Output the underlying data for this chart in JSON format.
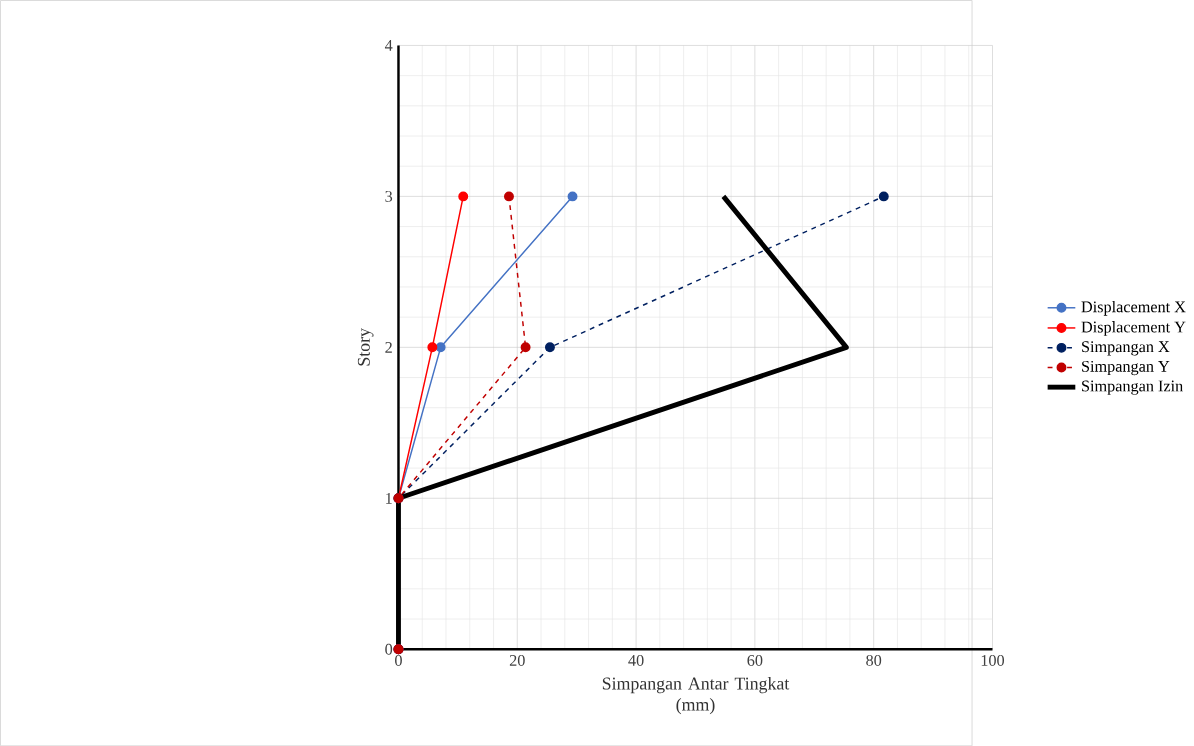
{
  "chart_data": {
    "type": "line",
    "xlabel": "Simpangan Antar Tingkat\n(mm)",
    "ylabel": "Story",
    "xlim": [
      0,
      100
    ],
    "xticks": [
      0,
      20,
      40,
      60,
      80,
      100
    ],
    "ylim": [
      0,
      4
    ],
    "yticks": [
      0,
      1,
      2,
      3,
      4
    ],
    "grid": true,
    "legend": "right",
    "marker": "circle",
    "series": [
      {
        "name": "Displacement X",
        "color": "#4472c4",
        "line_style": "solid",
        "x": [
          0,
          0,
          7.1,
          29.3
        ],
        "values": [
          0,
          1,
          2,
          3
        ]
      },
      {
        "name": "Displacement Y",
        "color": "#ff0000",
        "line_style": "solid",
        "x": [
          0,
          0,
          5.7,
          10.9
        ],
        "values": [
          0,
          1,
          2,
          3
        ]
      },
      {
        "name": "Simpangan X",
        "color": "#002060",
        "line_style": "dashed",
        "x": [
          0,
          0,
          25.5,
          81.7
        ],
        "values": [
          0,
          1,
          2,
          3
        ]
      },
      {
        "name": "Simpangan Y",
        "color": "#c00000",
        "line_style": "dashed",
        "x": [
          0,
          0,
          21.4,
          18.6
        ],
        "values": [
          0,
          1,
          2,
          3
        ]
      },
      {
        "name": "Simpangan Izin",
        "color": "#000000",
        "line_style": "solid",
        "marker": "none",
        "x": [
          0,
          0,
          75.4,
          54.7
        ],
        "values": [
          0,
          1,
          2,
          3
        ]
      }
    ]
  }
}
